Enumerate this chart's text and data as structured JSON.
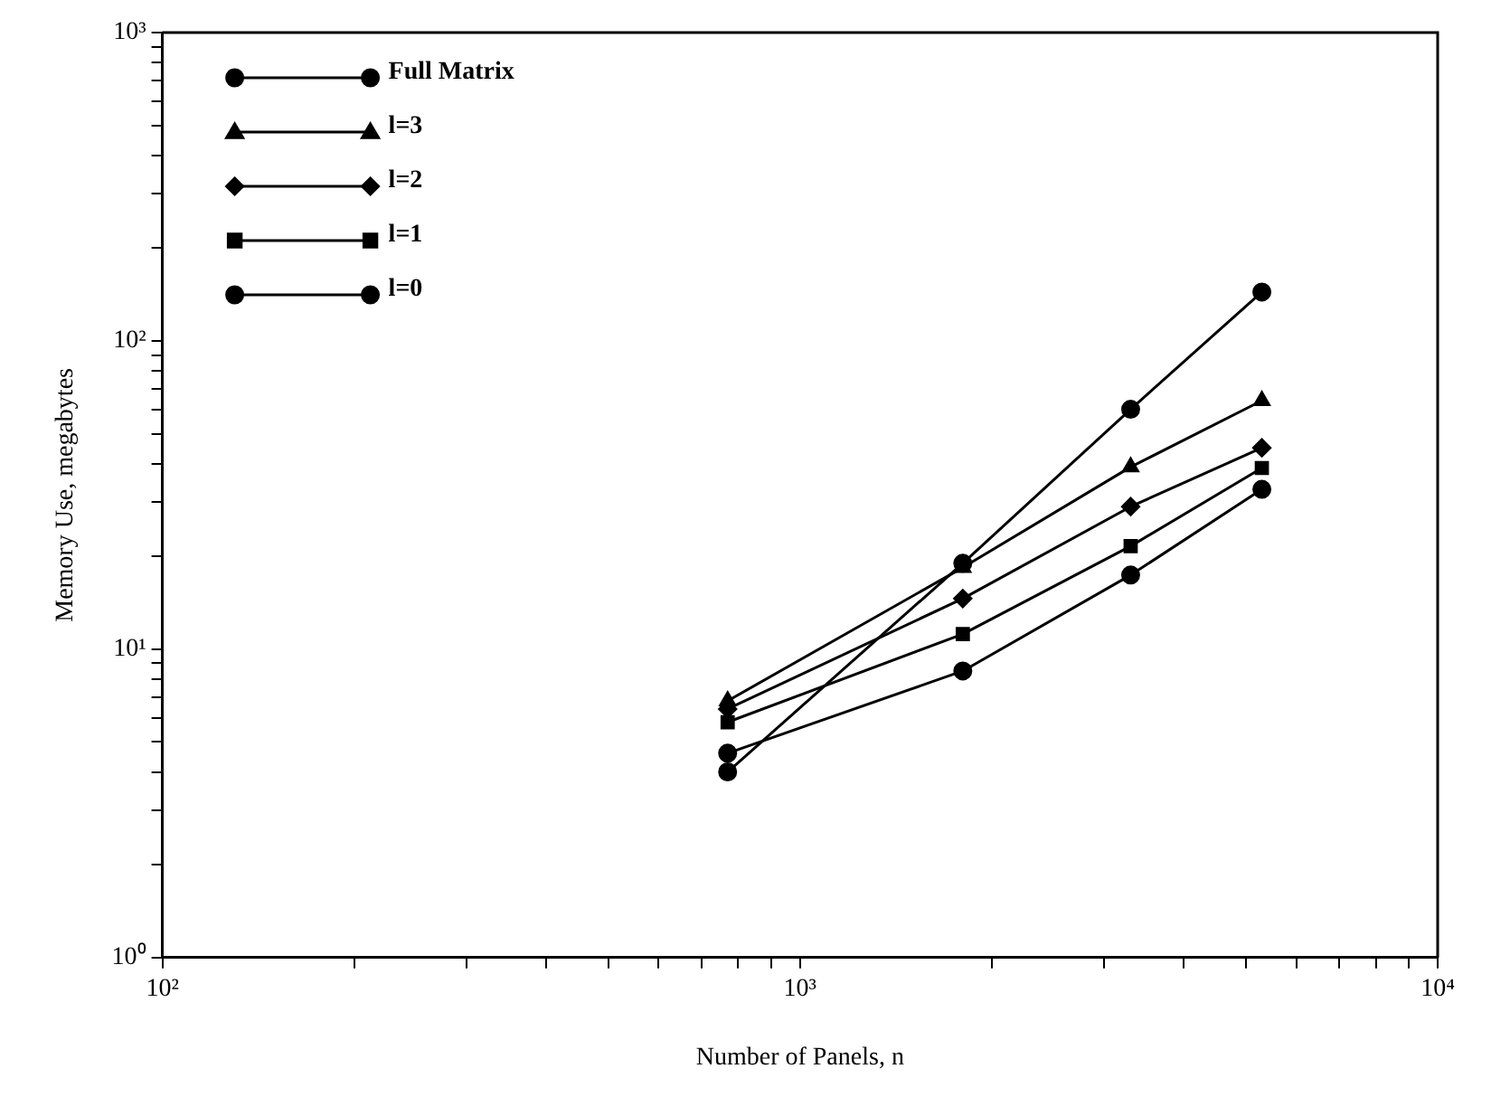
{
  "chart_data": {
    "type": "line",
    "xlabel": "Number of Panels, n",
    "ylabel": "Memory Use, megabytes",
    "log": "xy",
    "grid": false,
    "legend": "top left",
    "line_style": "solid",
    "xlim": [
      100,
      10000
    ],
    "ylim": [
      1,
      1000
    ],
    "xticks": [
      {
        "value": 100,
        "label": "10²"
      },
      {
        "value": 200,
        "label": null
      },
      {
        "value": 300,
        "label": null
      },
      {
        "value": 400,
        "label": null
      },
      {
        "value": 500,
        "label": null
      },
      {
        "value": 600,
        "label": null
      },
      {
        "value": 700,
        "label": null
      },
      {
        "value": 800,
        "label": null
      },
      {
        "value": 900,
        "label": null
      },
      {
        "value": 1000,
        "label": "10³"
      },
      {
        "value": 2000,
        "label": null
      },
      {
        "value": 3000,
        "label": null
      },
      {
        "value": 4000,
        "label": null
      },
      {
        "value": 5000,
        "label": null
      },
      {
        "value": 6000,
        "label": null
      },
      {
        "value": 7000,
        "label": null
      },
      {
        "value": 8000,
        "label": null
      },
      {
        "value": 9000,
        "label": null
      },
      {
        "value": 10000,
        "label": "10⁴"
      }
    ],
    "yticks": [
      {
        "value": 1,
        "label": "10⁰"
      },
      {
        "value": 2,
        "label": null
      },
      {
        "value": 3,
        "label": null
      },
      {
        "value": 4,
        "label": null
      },
      {
        "value": 5,
        "label": null
      },
      {
        "value": 6,
        "label": null
      },
      {
        "value": 7,
        "label": null
      },
      {
        "value": 8,
        "label": null
      },
      {
        "value": 9,
        "label": null
      },
      {
        "value": 10,
        "label": "10¹"
      },
      {
        "value": 20,
        "label": null
      },
      {
        "value": 30,
        "label": null
      },
      {
        "value": 40,
        "label": null
      },
      {
        "value": 50,
        "label": null
      },
      {
        "value": 60,
        "label": null
      },
      {
        "value": 70,
        "label": null
      },
      {
        "value": 80,
        "label": null
      },
      {
        "value": 90,
        "label": null
      },
      {
        "value": 100,
        "label": "10²"
      },
      {
        "value": 200,
        "label": null
      },
      {
        "value": 300,
        "label": null
      },
      {
        "value": 400,
        "label": null
      },
      {
        "value": 500,
        "label": null
      },
      {
        "value": 600,
        "label": null
      },
      {
        "value": 700,
        "label": null
      },
      {
        "value": 800,
        "label": null
      },
      {
        "value": 900,
        "label": null
      },
      {
        "value": 1000,
        "label": "10³"
      }
    ],
    "x": [
      770,
      1800,
      3300,
      5300
    ],
    "series": [
      {
        "name": "Full Matrix",
        "color": "#000000",
        "marker": "circle",
        "values": [
          4,
          19,
          60,
          144
        ]
      },
      {
        "name": "l=3",
        "color": "#000000",
        "marker": "triangle",
        "values": [
          6.8,
          18.4,
          39,
          64
        ]
      },
      {
        "name": "l=2",
        "color": "#000000",
        "marker": "diamond",
        "values": [
          6.4,
          14.6,
          29,
          45
        ]
      },
      {
        "name": "l=1",
        "color": "#000000",
        "marker": "square",
        "values": [
          5.8,
          11.2,
          21.6,
          38.7
        ]
      },
      {
        "name": "l=0",
        "color": "#000000",
        "marker": "circle",
        "values": [
          4.6,
          8.5,
          17.4,
          33
        ]
      }
    ]
  }
}
